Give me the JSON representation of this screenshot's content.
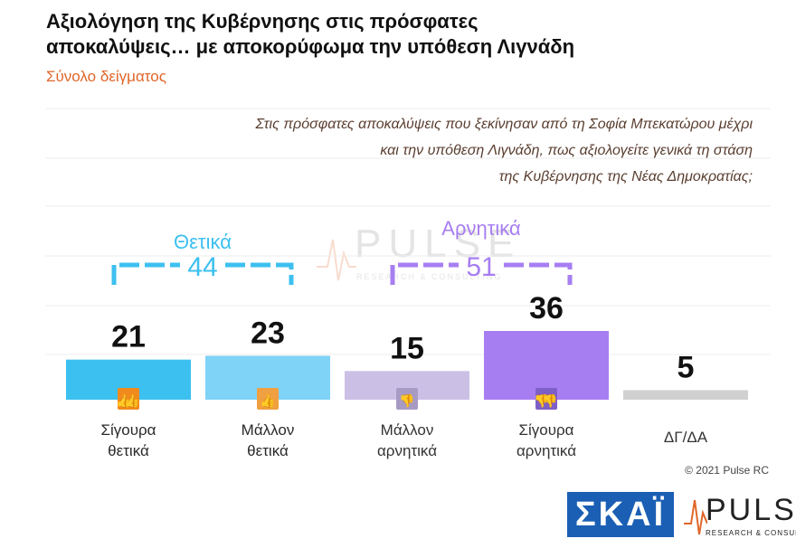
{
  "title_line1": "Αξιολόγηση της Κυβέρνησης στις πρόσφατες",
  "title_line2": "αποκαλύψεις… με αποκορύφωμα την υπόθεση Λιγνάδη",
  "subtitle": "Σύνολο δείγματος",
  "question_line1": "Στις πρόσφατες αποκαλύψεις που ξεκίνησαν από τη Σοφία Μπεκατώρου μέχρι",
  "question_line2": "και την υπόθεση Λιγνάδη, πως αξιολογείτε γενικά τη στάση",
  "question_line3": "της Κυβέρνησης της Νέας Δημοκρατίας;",
  "groups": {
    "positive": {
      "label": "Θετικά",
      "total": "44",
      "color": "#3cc0f0"
    },
    "negative": {
      "label": "Αρνητικά",
      "total": "51",
      "color": "#a77ef2"
    }
  },
  "copyright": "© 2021 Pulse RC",
  "logos": {
    "skai": "ΣΚΑΪ",
    "pulse": "PULSE",
    "pulse_sub": "RESEARCH & CONSULTING",
    "watermark": "PULSE",
    "watermark_sub": "RESEARCH & CONSULTING"
  },
  "icons": [
    "thumbs-up-double-icon",
    "thumbs-up-icon",
    "thumbs-down-icon",
    "thumbs-down-double-icon"
  ],
  "chart_data": {
    "type": "bar",
    "categories": [
      [
        "Σίγουρα",
        "θετικά"
      ],
      [
        "Μάλλον",
        "θετικά"
      ],
      [
        "Μάλλον",
        "αρνητικά"
      ],
      [
        "Σίγουρα",
        "αρνητικά"
      ],
      [
        "ΔΓ/ΔΑ"
      ]
    ],
    "values": [
      21,
      23,
      15,
      36,
      5
    ],
    "colors": [
      "#3cc0f0",
      "#7fd3f7",
      "#cbbfe6",
      "#a77ef2",
      "#d0d0d0"
    ],
    "icon_colors": [
      "#f08a1c",
      "#f0a040",
      "#a79bc4",
      "#7e5fc7",
      null
    ],
    "ylim": [
      0,
      36
    ]
  }
}
